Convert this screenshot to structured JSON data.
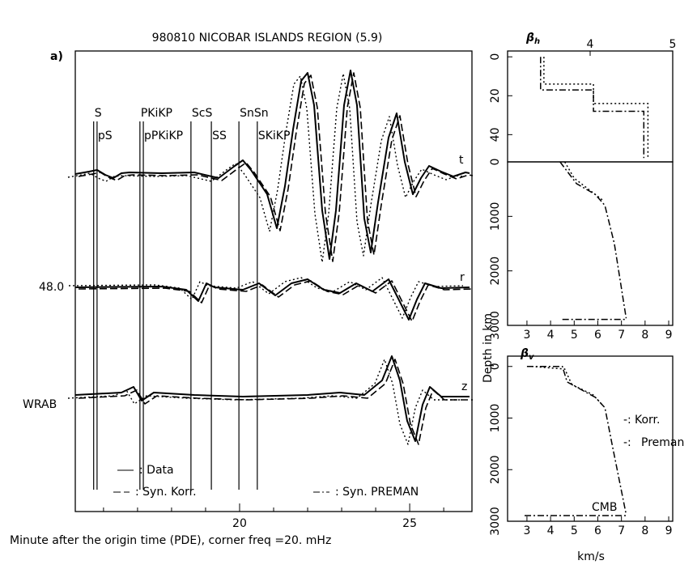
{
  "chart_data": [
    {
      "type": "seismogram",
      "title": "980810 NICOBAR ISLANDS REGION   (5.9)",
      "panel_label": "a)",
      "x_label": "Minute after the origin time (PDE), corner freq    =20.   mHz",
      "xlim": [
        15.17,
        26.83
      ],
      "xticks": [
        20,
        25
      ],
      "x_minor_ticks": [
        16,
        17,
        18,
        19,
        21,
        22,
        23,
        24,
        26
      ],
      "phases": [
        {
          "name": "S",
          "time": 15.71
        },
        {
          "name": "pS",
          "time": 15.81
        },
        {
          "name": "PKiKP",
          "time": 17.07
        },
        {
          "name": "pPKiKP",
          "time": 17.17
        },
        {
          "name": "ScS",
          "time": 18.57
        },
        {
          "name": "SS",
          "time": 19.17
        },
        {
          "name": "SnSn",
          "time": 19.98
        },
        {
          "name": "SKiKP",
          "time": 20.52
        }
      ],
      "trace_labels": [
        "t",
        "r",
        "z"
      ],
      "amplitude_label": "48.0",
      "station": "WRAB",
      "legend": [
        {
          "label": ": Data",
          "style": "solid"
        },
        {
          "label": ": Syn. Korr.",
          "style": "dashed"
        },
        {
          "label": ": Syn. PREMAN",
          "style": "dash-dot"
        }
      ]
    },
    {
      "type": "line",
      "title": "β",
      "title_sub": "h",
      "xlim": [
        3,
        5
      ],
      "xticks": [
        4,
        5
      ],
      "ylim": [
        -3,
        54
      ],
      "yticks": [
        0,
        20,
        40
      ],
      "series": [
        {
          "style": "dash-dot",
          "x": [
            3.4,
            3.4,
            4.04,
            4.04,
            4.65,
            4.65
          ],
          "y": [
            0,
            17,
            17,
            28,
            28,
            52
          ]
        },
        {
          "style": "dotted",
          "x": [
            3.44,
            3.44,
            4.04,
            4.04,
            4.7,
            4.7
          ],
          "y": [
            0,
            14,
            14,
            24,
            24,
            52
          ]
        }
      ]
    },
    {
      "type": "line",
      "xlim": [
        2.18,
        9.17
      ],
      "xticks": [
        3,
        4,
        5,
        6,
        7,
        8,
        9
      ],
      "ylim": [
        0,
        3000
      ],
      "yticks": [
        0,
        1000,
        2000,
        3000
      ],
      "series": [
        {
          "style": "dash-dot",
          "x": [
            4.4,
            5.1,
            5.9,
            6.3,
            6.7,
            7.2
          ],
          "y": [
            0,
            400,
            600,
            800,
            1500,
            2870
          ]
        },
        {
          "style": "dotted",
          "x": [
            4.6,
            5.0,
            5.6,
            6.2
          ],
          "y": [
            0,
            300,
            500,
            700
          ]
        },
        {
          "style": "dash-dot",
          "x": [
            4.5,
            7.2
          ],
          "y": [
            2890,
            2890
          ]
        }
      ]
    },
    {
      "type": "line",
      "title": "β",
      "title_sub": "v",
      "x_label": "km/s",
      "y_label": "Depth in km",
      "xlim": [
        2.18,
        9.17
      ],
      "xticks": [
        3,
        4,
        5,
        6,
        7,
        8,
        9
      ],
      "ylim": [
        -200,
        3000
      ],
      "yticks": [
        0,
        1000,
        2000,
        3000
      ],
      "annotations": [
        "Korr.",
        "Preman",
        "CMB"
      ],
      "series": [
        {
          "style": "dash-dot",
          "x": [
            3.0,
            4.5,
            4.7,
            5.9,
            6.3,
            6.6,
            7.2
          ],
          "y": [
            0,
            0,
            300,
            600,
            800,
            1500,
            2870
          ]
        },
        {
          "style": "dotted",
          "x": [
            3.2,
            4.6,
            4.9,
            5.8,
            6.2
          ],
          "y": [
            0,
            50,
            350,
            550,
            750
          ]
        },
        {
          "style": "dash-dot",
          "x": [
            2.9,
            7.2
          ],
          "y": [
            2890,
            2890
          ]
        }
      ]
    }
  ]
}
